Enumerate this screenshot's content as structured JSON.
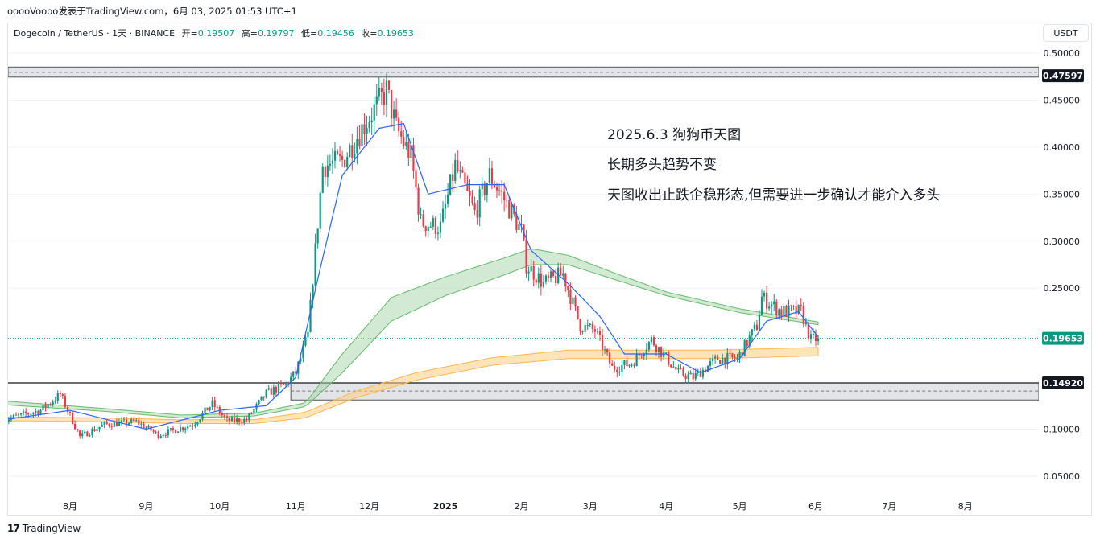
{
  "header": {
    "meta": "ooooVoooo发表于TradingView.com，6月 03, 2025 01:53 UTC+1"
  },
  "legend": {
    "symbol": "Dogecoin / TetherUS · 1天 · BINANCE",
    "open_label": "开=",
    "open": "0.19507",
    "high_label": "高=",
    "high": "0.19797",
    "low_label": "低=",
    "low": "0.19456",
    "close_label": "收=",
    "close": "0.19653"
  },
  "currency_button": "USDT",
  "annotations": [
    "2025.6.3 狗狗币天图",
    "长期多头趋势不变",
    "天图收出止跌企稳形态,但需要进一步确认才能介入多头"
  ],
  "footer": {
    "brand": "TradingView",
    "logo_mark": "17"
  },
  "colors": {
    "up": "#089981",
    "down": "#f23645",
    "ma": "#2962ff",
    "green_band": "#a5d6a7",
    "green_line": "#66bb6a",
    "orange_band": "#ffcc80",
    "orange_line": "#ffb74d",
    "zone_fill": "#e3e4e8",
    "grid": "#f0f3fa"
  },
  "chart_data": {
    "type": "candlestick",
    "symbol": "DOGEUSDT",
    "exchange": "BINANCE",
    "interval": "1天",
    "ylim": [
      0.03,
      0.52
    ],
    "y_ticks": [
      "0.50000",
      "0.45000",
      "0.40000",
      "0.35000",
      "0.30000",
      "0.25000",
      "0.10000",
      "0.05000"
    ],
    "x_ticks": [
      "8月",
      "9月",
      "10月",
      "11月",
      "12月",
      "2025",
      "2月",
      "3月",
      "4月",
      "5月",
      "6月",
      "7月",
      "8月"
    ],
    "x_tick_dates": [
      "2024-08-01",
      "2024-09-01",
      "2024-10-01",
      "2024-11-01",
      "2024-12-01",
      "2025-01-01",
      "2025-02-01",
      "2025-03-01",
      "2025-04-01",
      "2025-05-01",
      "2025-06-01",
      "2025-07-01",
      "2025-08-01"
    ],
    "price_labels": [
      {
        "value": 0.47597,
        "label": "0.47597",
        "style": "dark"
      },
      {
        "value": 0.1492,
        "label": "0.14920",
        "style": "dark"
      },
      {
        "value": 0.19653,
        "label": "0.19653",
        "style": "green"
      }
    ],
    "resistance_zone": {
      "top": 0.4852,
      "mid": 0.4796,
      "bottom": 0.4745
    },
    "support_zone": {
      "top": 0.1492,
      "mid": 0.1405,
      "bottom": 0.131,
      "from": "2024-10-30"
    },
    "support_line": {
      "value": 0.1492,
      "from": "2024-07-05"
    },
    "last_close": 0.19653,
    "price_anchors": [
      [
        "2024-07-05",
        0.11
      ],
      [
        "2024-07-20",
        0.12
      ],
      [
        "2024-07-28",
        0.137
      ],
      [
        "2024-08-05",
        0.092
      ],
      [
        "2024-08-15",
        0.105
      ],
      [
        "2024-08-28",
        0.108
      ],
      [
        "2024-09-06",
        0.094
      ],
      [
        "2024-09-20",
        0.105
      ],
      [
        "2024-09-28",
        0.127
      ],
      [
        "2024-10-04",
        0.109
      ],
      [
        "2024-10-12",
        0.11
      ],
      [
        "2024-10-20",
        0.138
      ],
      [
        "2024-10-28",
        0.148
      ],
      [
        "2024-11-01",
        0.16
      ],
      [
        "2024-11-06",
        0.2
      ],
      [
        "2024-11-12",
        0.38
      ],
      [
        "2024-11-20",
        0.385
      ],
      [
        "2024-11-28",
        0.42
      ],
      [
        "2024-12-08",
        0.46
      ],
      [
        "2024-12-12",
        0.42
      ],
      [
        "2024-12-18",
        0.39
      ],
      [
        "2024-12-22",
        0.32
      ],
      [
        "2024-12-30",
        0.315
      ],
      [
        "2025-01-05",
        0.38
      ],
      [
        "2025-01-13",
        0.33
      ],
      [
        "2025-01-19",
        0.37
      ],
      [
        "2025-01-25",
        0.345
      ],
      [
        "2025-02-01",
        0.31
      ],
      [
        "2025-02-03",
        0.275
      ],
      [
        "2025-02-10",
        0.255
      ],
      [
        "2025-02-18",
        0.265
      ],
      [
        "2025-02-25",
        0.21
      ],
      [
        "2025-03-03",
        0.205
      ],
      [
        "2025-03-10",
        0.165
      ],
      [
        "2025-03-18",
        0.17
      ],
      [
        "2025-03-26",
        0.195
      ],
      [
        "2025-04-06",
        0.16
      ],
      [
        "2025-04-12",
        0.155
      ],
      [
        "2025-04-22",
        0.175
      ],
      [
        "2025-04-30",
        0.175
      ],
      [
        "2025-05-08",
        0.21
      ],
      [
        "2025-05-10",
        0.24
      ],
      [
        "2025-05-18",
        0.225
      ],
      [
        "2025-05-26",
        0.225
      ],
      [
        "2025-05-30",
        0.195
      ],
      [
        "2025-06-02",
        0.19653
      ]
    ],
    "ma_short": {
      "name": "",
      "color": "#2962ff",
      "anchors": [
        [
          "2024-07-05",
          0.11
        ],
        [
          "2024-08-01",
          0.12
        ],
        [
          "2024-09-01",
          0.1
        ],
        [
          "2024-10-01",
          0.12
        ],
        [
          "2024-10-20",
          0.125
        ],
        [
          "2024-11-01",
          0.155
        ],
        [
          "2024-11-10",
          0.26
        ],
        [
          "2024-11-20",
          0.37
        ],
        [
          "2024-12-05",
          0.42
        ],
        [
          "2024-12-15",
          0.425
        ],
        [
          "2024-12-25",
          0.35
        ],
        [
          "2025-01-10",
          0.36
        ],
        [
          "2025-01-25",
          0.36
        ],
        [
          "2025-02-05",
          0.29
        ],
        [
          "2025-02-20",
          0.255
        ],
        [
          "2025-03-05",
          0.22
        ],
        [
          "2025-03-15",
          0.18
        ],
        [
          "2025-04-01",
          0.18
        ],
        [
          "2025-04-15",
          0.16
        ],
        [
          "2025-05-01",
          0.175
        ],
        [
          "2025-05-12",
          0.215
        ],
        [
          "2025-05-25",
          0.225
        ],
        [
          "2025-06-02",
          0.198
        ]
      ]
    },
    "band_green": {
      "color": "#a5d6a7",
      "upper": [
        [
          "2024-07-05",
          0.13
        ],
        [
          "2024-08-15",
          0.122
        ],
        [
          "2024-09-15",
          0.115
        ],
        [
          "2024-10-15",
          0.117
        ],
        [
          "2024-11-05",
          0.128
        ],
        [
          "2024-11-20",
          0.18
        ],
        [
          "2024-12-10",
          0.24
        ],
        [
          "2025-01-01",
          0.262
        ],
        [
          "2025-01-25",
          0.282
        ],
        [
          "2025-02-05",
          0.292
        ],
        [
          "2025-02-20",
          0.285
        ],
        [
          "2025-03-10",
          0.267
        ],
        [
          "2025-04-01",
          0.246
        ],
        [
          "2025-05-01",
          0.228
        ],
        [
          "2025-06-02",
          0.214
        ]
      ],
      "lower": [
        [
          "2024-07-05",
          0.126
        ],
        [
          "2024-08-15",
          0.119
        ],
        [
          "2024-09-15",
          0.112
        ],
        [
          "2024-10-15",
          0.114
        ],
        [
          "2024-11-05",
          0.124
        ],
        [
          "2024-11-20",
          0.16
        ],
        [
          "2024-12-10",
          0.215
        ],
        [
          "2025-01-01",
          0.242
        ],
        [
          "2025-01-25",
          0.264
        ],
        [
          "2025-02-05",
          0.275
        ],
        [
          "2025-02-20",
          0.275
        ],
        [
          "2025-03-10",
          0.26
        ],
        [
          "2025-04-01",
          0.242
        ],
        [
          "2025-05-01",
          0.224
        ],
        [
          "2025-06-02",
          0.211
        ]
      ]
    },
    "band_orange": {
      "color": "#ffcc80",
      "upper": [
        [
          "2024-07-05",
          0.113
        ],
        [
          "2024-08-15",
          0.112
        ],
        [
          "2024-09-15",
          0.11
        ],
        [
          "2024-10-15",
          0.11
        ],
        [
          "2024-11-05",
          0.118
        ],
        [
          "2024-11-25",
          0.14
        ],
        [
          "2024-12-20",
          0.16
        ],
        [
          "2025-01-20",
          0.176
        ],
        [
          "2025-02-20",
          0.184
        ],
        [
          "2025-03-20",
          0.184
        ],
        [
          "2025-04-20",
          0.184
        ],
        [
          "2025-06-02",
          0.187
        ]
      ],
      "lower": [
        [
          "2024-07-05",
          0.109
        ],
        [
          "2024-08-15",
          0.108
        ],
        [
          "2024-09-15",
          0.106
        ],
        [
          "2024-10-15",
          0.106
        ],
        [
          "2024-11-05",
          0.112
        ],
        [
          "2024-11-25",
          0.133
        ],
        [
          "2024-12-20",
          0.152
        ],
        [
          "2025-01-20",
          0.168
        ],
        [
          "2025-02-20",
          0.175
        ],
        [
          "2025-03-20",
          0.175
        ],
        [
          "2025-04-20",
          0.175
        ],
        [
          "2025-06-02",
          0.178
        ]
      ]
    }
  }
}
